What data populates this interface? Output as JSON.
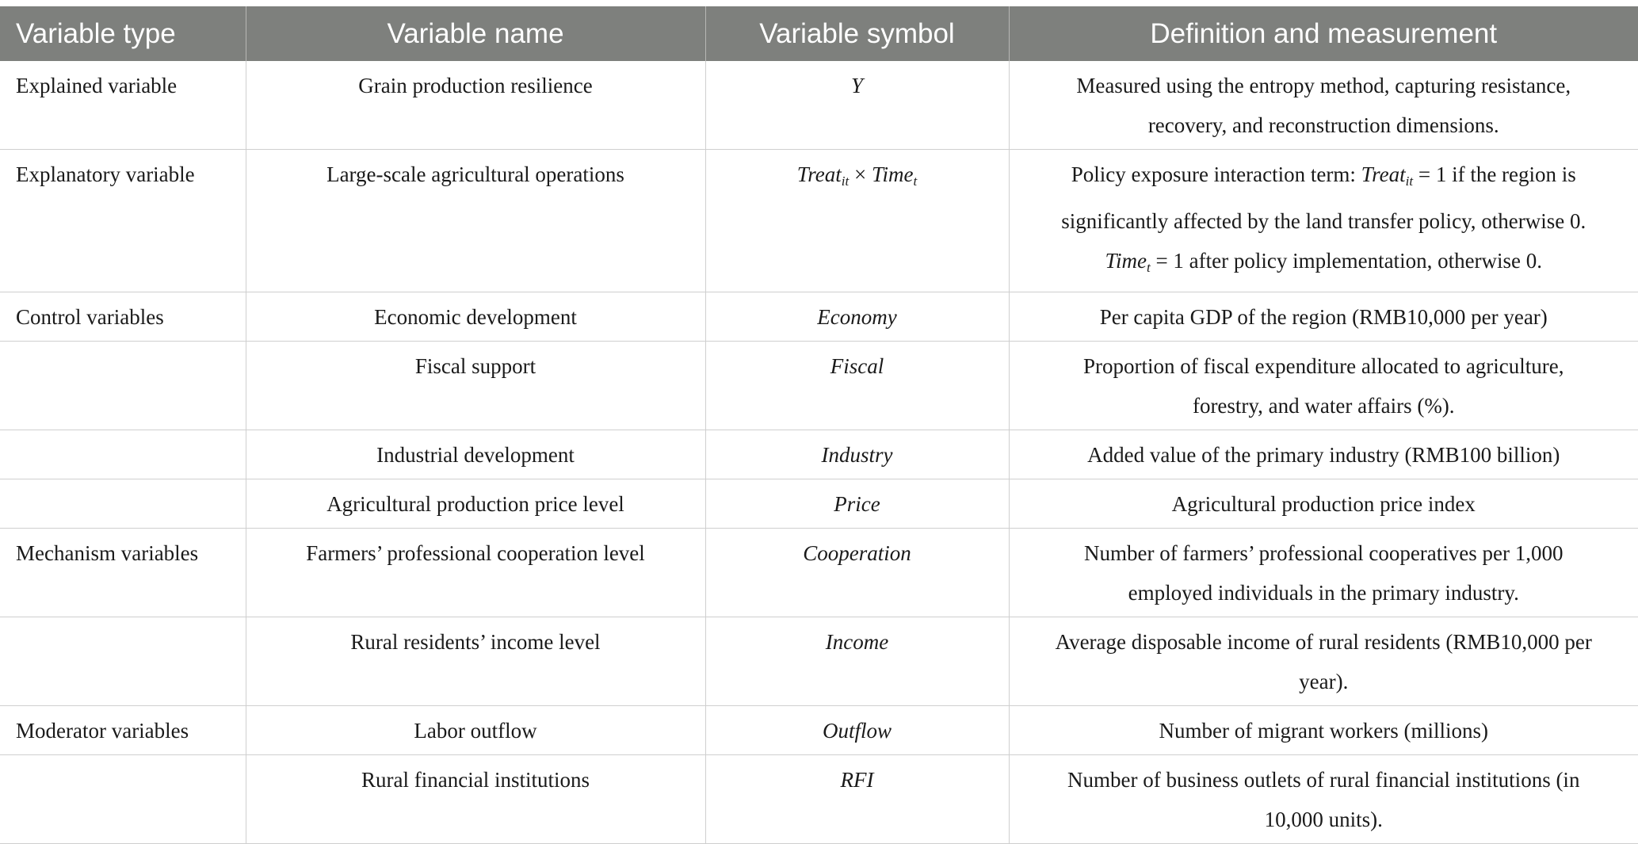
{
  "table": {
    "headers": [
      "Variable type",
      "Variable name",
      "Variable symbol",
      "Definition and measurement"
    ],
    "rows": [
      {
        "type": "Explained variable",
        "name": "Grain production resilience",
        "symbol": "Y",
        "definition": [
          "Measured using the entropy method, capturing resistance,",
          "recovery, and reconstruction dimensions."
        ]
      },
      {
        "type": "Explanatory variable",
        "name": "Large-scale agricultural operations",
        "symbol_parts": {
          "a": "Treat",
          "a_sub": "it",
          "op": " × ",
          "b": "Time",
          "b_sub": "t"
        },
        "definition_parts": {
          "l1_pre": "Policy exposure interaction term: ",
          "l1_sym": "Treat",
          "l1_sub": "it",
          "l1_post": " = 1 if the region is",
          "l2": "significantly affected by the land transfer policy, otherwise 0.",
          "l3_sym": "Time",
          "l3_sub": "t",
          "l3_post": " = 1 after policy implementation, otherwise 0."
        }
      },
      {
        "type": "Control variables",
        "name": "Economic development",
        "symbol": "Economy",
        "definition": [
          "Per capita GDP of the region (RMB10,000 per year)"
        ]
      },
      {
        "type": "",
        "name": "Fiscal support",
        "symbol": "Fiscal",
        "definition": [
          "Proportion of fiscal expenditure allocated to agriculture,",
          "forestry, and water affairs (%)."
        ]
      },
      {
        "type": "",
        "name": "Industrial development",
        "symbol": "Industry",
        "definition": [
          "Added value of the primary industry (RMB100 billion)"
        ]
      },
      {
        "type": "",
        "name": "Agricultural production price level",
        "symbol": "Price",
        "definition": [
          "Agricultural production price index"
        ]
      },
      {
        "type": "Mechanism variables",
        "name": "Farmers’ professional cooperation level",
        "symbol": "Cooperation",
        "definition": [
          "Number of farmers’ professional cooperatives per 1,000",
          "employed individuals in the primary industry."
        ]
      },
      {
        "type": "",
        "name": "Rural residents’ income level",
        "symbol": "Income",
        "definition": [
          "Average disposable income of rural residents (RMB10,000 per",
          "year)."
        ]
      },
      {
        "type": "Moderator variables",
        "name": "Labor outflow",
        "symbol": "Outflow",
        "definition": [
          "Number of migrant workers (millions)"
        ]
      },
      {
        "type": "",
        "name": "Rural financial institutions",
        "symbol": "RFI",
        "definition": [
          "Number of business outlets of rural financial institutions (in",
          "10,000 units)."
        ]
      }
    ]
  }
}
